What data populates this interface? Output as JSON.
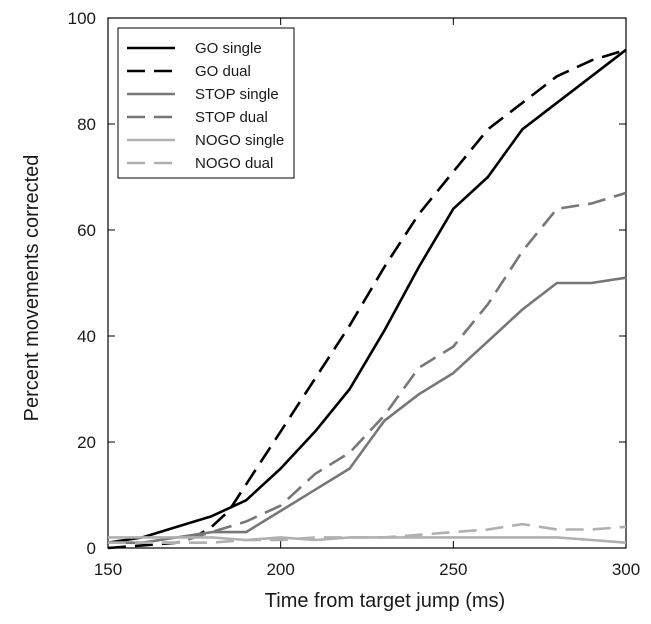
{
  "chart_data": {
    "type": "line",
    "title": "",
    "xlabel": "Time from target jump (ms)",
    "ylabel": "Percent movements corrected",
    "xlim": [
      150,
      300
    ],
    "ylim": [
      0,
      100
    ],
    "xticks": [
      "150",
      "200",
      "250",
      "300"
    ],
    "yticks": [
      "0",
      "20",
      "40",
      "60",
      "80",
      "100"
    ],
    "grid": false,
    "legend_position": "top-left",
    "series": [
      {
        "name": "GO single",
        "color": "#000000",
        "style": "solid",
        "x": [
          150,
          160,
          170,
          180,
          190,
          200,
          210,
          220,
          230,
          240,
          250,
          260,
          270,
          280,
          290,
          300
        ],
        "y": [
          1,
          2,
          4,
          6,
          9,
          15,
          22,
          30,
          41,
          53,
          64,
          70,
          79,
          84,
          89,
          94
        ]
      },
      {
        "name": "GO dual",
        "color": "#000000",
        "style": "dashed",
        "x": [
          150,
          160,
          170,
          175,
          180,
          185,
          190,
          200,
          210,
          220,
          230,
          240,
          250,
          260,
          270,
          280,
          290,
          300
        ],
        "y": [
          0,
          0.5,
          1,
          2,
          4,
          7,
          12,
          22,
          32,
          42,
          53,
          63,
          71,
          79,
          84,
          89,
          92,
          94
        ]
      },
      {
        "name": "STOP single",
        "color": "#777777",
        "style": "solid",
        "x": [
          150,
          160,
          170,
          180,
          190,
          200,
          210,
          220,
          230,
          240,
          250,
          260,
          270,
          280,
          290,
          300
        ],
        "y": [
          1,
          1,
          2,
          3,
          3,
          7,
          11,
          15,
          24,
          29,
          33,
          39,
          45,
          50,
          50,
          51
        ]
      },
      {
        "name": "STOP dual",
        "color": "#777777",
        "style": "dashed",
        "x": [
          150,
          160,
          170,
          180,
          190,
          200,
          210,
          220,
          230,
          240,
          250,
          260,
          270,
          280,
          290,
          300
        ],
        "y": [
          1,
          1,
          1,
          3,
          5,
          8,
          14,
          18,
          25,
          34,
          38,
          46,
          56,
          64,
          65,
          67
        ]
      },
      {
        "name": "NOGO single",
        "color": "#b0b0b0",
        "style": "solid",
        "x": [
          150,
          160,
          170,
          180,
          190,
          200,
          210,
          220,
          230,
          240,
          250,
          260,
          270,
          280,
          290,
          300
        ],
        "y": [
          2,
          2,
          2,
          2,
          1.5,
          2,
          1.5,
          2,
          2,
          2,
          2,
          2,
          2,
          2,
          1.5,
          1
        ]
      },
      {
        "name": "NOGO dual",
        "color": "#b0b0b0",
        "style": "dashed",
        "x": [
          150,
          160,
          170,
          180,
          190,
          200,
          210,
          220,
          230,
          240,
          250,
          260,
          270,
          280,
          290,
          300
        ],
        "y": [
          1,
          1,
          1,
          1,
          1.5,
          1.5,
          2,
          2,
          2,
          2.5,
          3,
          3.5,
          4.5,
          3.5,
          3.5,
          4
        ]
      }
    ]
  }
}
